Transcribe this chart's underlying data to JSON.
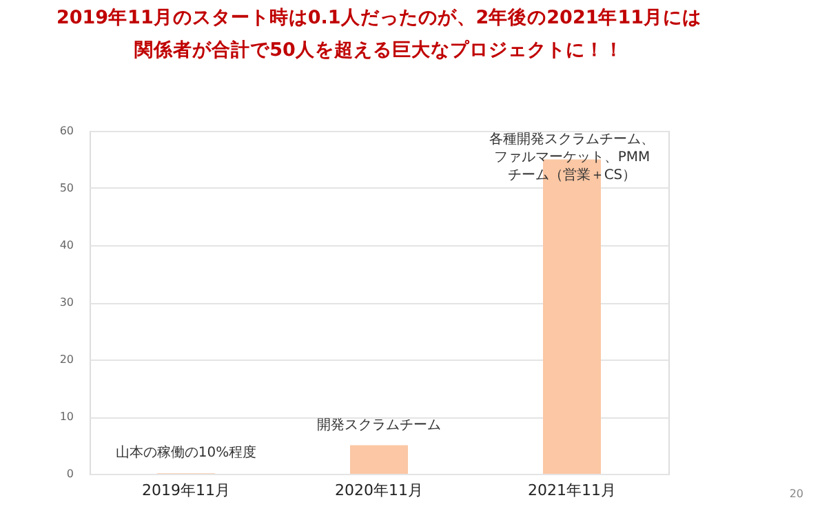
{
  "chart_data": {
    "type": "bar",
    "title": "2019年11月のスタート時は0.1人だったのが、2年後の2021年11月には",
    "subtitle": "関係者が合計で50人を超える巨大なプロジェクトに！！",
    "categories": [
      "2019年11月",
      "2020年11月",
      "2021年11月"
    ],
    "values": [
      0.1,
      5,
      55
    ],
    "color": "#fbc7a4",
    "ylim": [
      0,
      60
    ],
    "yticks": [
      0,
      10,
      20,
      30,
      40,
      50,
      60
    ],
    "grid": "y",
    "annotations": [
      {
        "text": "山本の稼働の10%程度",
        "x": "2019年11月",
        "y": 0.1
      },
      {
        "text": "開発スクラムチーム",
        "x": "2020年11月",
        "y": 5
      },
      {
        "text": "各種開発スクラムチーム、ファルマーケット、PMMチーム（営業＋CS）",
        "x": "2021年11月",
        "y": 55
      },
      "20"
    ]
  }
}
